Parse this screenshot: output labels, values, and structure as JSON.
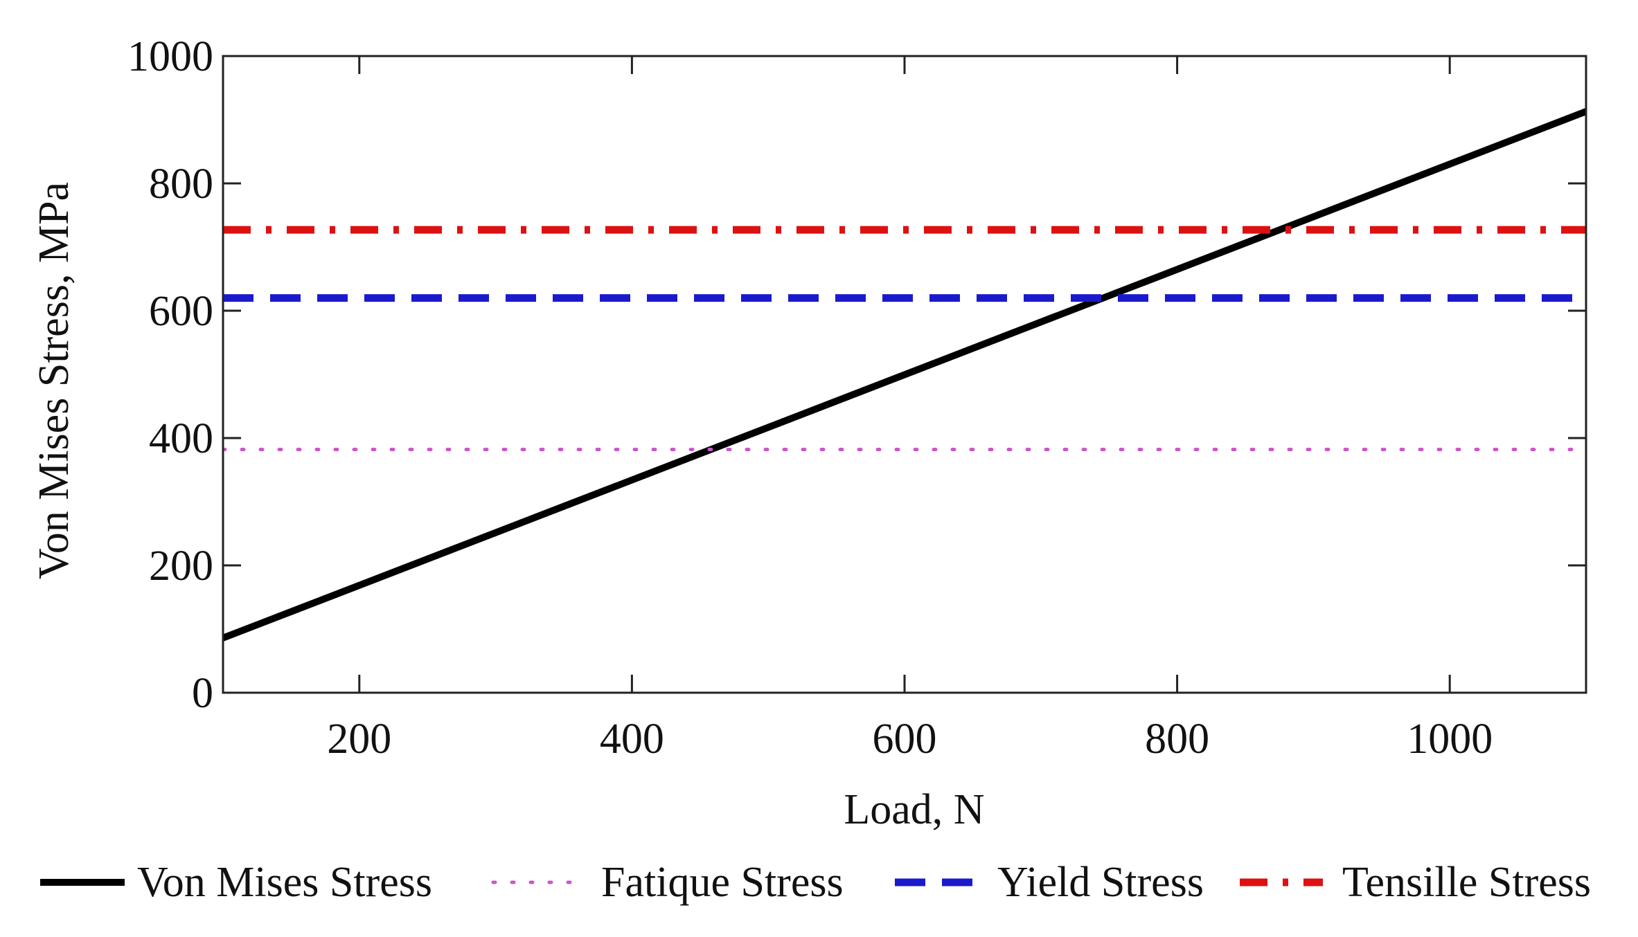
{
  "chart_data": {
    "type": "line",
    "title": "",
    "xlabel": "Load, N",
    "ylabel": "Von Mises Stress, MPa",
    "xlim": [
      100,
      1100
    ],
    "ylim": [
      0,
      1000
    ],
    "xticks": [
      200,
      400,
      600,
      800,
      1000
    ],
    "yticks": [
      0,
      200,
      400,
      600,
      800,
      1000
    ],
    "grid": false,
    "legend_position": "bottom",
    "series": [
      {
        "name": "Von Mises Stress",
        "x": [
          100,
          1100
        ],
        "values": [
          86,
          913
        ],
        "color": "#000000",
        "style": "solid"
      },
      {
        "name": "Fatique Stress",
        "x": [
          100,
          1100
        ],
        "values": [
          382,
          382
        ],
        "color": "#cc55cc",
        "style": "dotted"
      },
      {
        "name": "Yield Stress",
        "x": [
          100,
          1100
        ],
        "values": [
          620,
          620
        ],
        "color": "#1a1acc",
        "style": "dashed"
      },
      {
        "name": "Tensille Stress",
        "x": [
          100,
          1100
        ],
        "values": [
          727,
          727
        ],
        "color": "#dd1111",
        "style": "dashdot"
      }
    ]
  }
}
